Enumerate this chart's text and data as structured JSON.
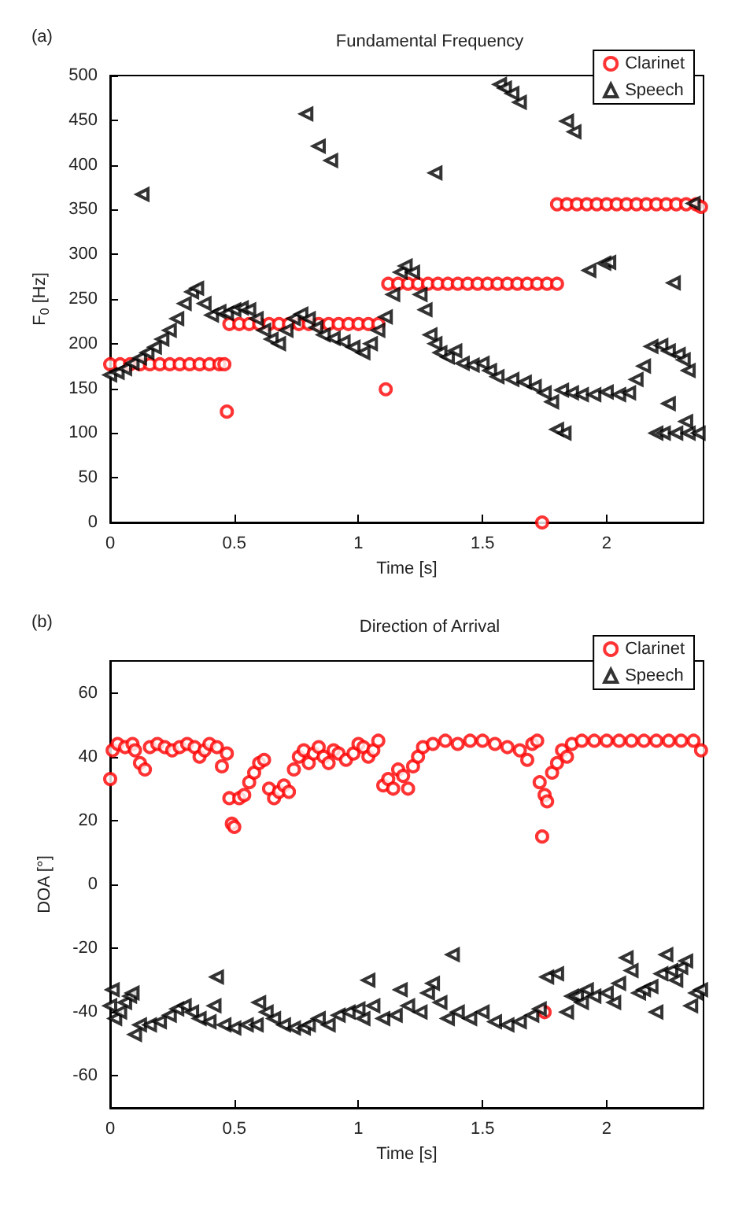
{
  "chart_data": [
    {
      "type": "scatter",
      "title": "Fundamental Frequency",
      "xlabel": "Time [s]",
      "ylabel": "F$_{0}$ [Hz]",
      "annotations": [
        "(a)"
      ],
      "xlim": [
        0,
        2.39
      ],
      "xticks": [
        0,
        0.5,
        1,
        1.5,
        2
      ],
      "ylim": [
        0,
        500
      ],
      "yticks": [
        0,
        50,
        100,
        150,
        200,
        250,
        300,
        350,
        400,
        450,
        500
      ],
      "grid": false,
      "legend": "top right",
      "series": [
        {
          "name": "Clarinet",
          "color": "#ff0000",
          "marker": "circle",
          "x": [
            0,
            0.04,
            0.08,
            0.12,
            0.16,
            0.2,
            0.24,
            0.28,
            0.32,
            0.36,
            0.4,
            0.44,
            0.46,
            0.47,
            0.48,
            0.52,
            0.56,
            0.6,
            0.64,
            0.68,
            0.72,
            0.76,
            0.8,
            0.84,
            0.88,
            0.92,
            0.96,
            1,
            1.04,
            1.08,
            1.11,
            1.12,
            1.16,
            1.2,
            1.24,
            1.28,
            1.32,
            1.36,
            1.4,
            1.44,
            1.48,
            1.52,
            1.56,
            1.6,
            1.64,
            1.68,
            1.72,
            1.74,
            1.76,
            1.8,
            1.8,
            1.84,
            1.88,
            1.92,
            1.96,
            2,
            2.04,
            2.08,
            2.12,
            2.16,
            2.2,
            2.24,
            2.28,
            2.32,
            2.36,
            2.38
          ],
          "values": [
            177,
            177,
            177,
            177,
            177,
            177,
            177,
            177,
            177,
            177,
            177,
            177,
            177,
            124,
            222,
            222,
            222,
            222,
            222,
            222,
            222,
            222,
            222,
            222,
            222,
            222,
            222,
            222,
            222,
            222,
            149,
            267,
            267,
            267,
            267,
            267,
            267,
            267,
            267,
            267,
            267,
            267,
            267,
            267,
            267,
            267,
            267,
            0,
            267,
            267,
            356,
            356,
            356,
            356,
            356,
            356,
            356,
            356,
            356,
            356,
            356,
            356,
            356,
            356,
            356,
            353
          ]
        },
        {
          "name": "Speech",
          "color": "#000000",
          "marker": "triangle",
          "x": [
            0,
            0.03,
            0.06,
            0.09,
            0.12,
            0.15,
            0.18,
            0.21,
            0.24,
            0.27,
            0.3,
            0.33,
            0.35,
            0.38,
            0.41,
            0.44,
            0.47,
            0.5,
            0.53,
            0.56,
            0.59,
            0.62,
            0.65,
            0.68,
            0.71,
            0.74,
            0.77,
            0.8,
            0.83,
            0.86,
            0.9,
            0.94,
            0.98,
            1.02,
            1.05,
            1.08,
            1.11,
            1.14,
            1.17,
            1.19,
            1.22,
            1.25,
            1.27,
            1.29,
            1.31,
            1.33,
            1.36,
            1.39,
            1.42,
            1.46,
            1.5,
            1.53,
            1.56,
            1.62,
            1.67,
            1.71,
            1.75,
            1.78,
            1.82,
            1.86,
            1.9,
            1.95,
            2,
            2.05,
            2.09,
            2.12,
            2.15,
            2.18,
            2.22,
            2.25,
            2.29,
            2.31,
            0.13,
            0.79,
            0.84,
            0.89,
            1.31,
            1.57,
            1.59,
            1.62,
            1.65,
            1.84,
            1.87,
            1.93,
            1.99,
            2.01,
            2.2,
            2.23,
            2.28,
            2.33,
            2.37,
            1.8,
            1.83,
            2.25,
            2.33,
            2.27,
            2.35,
            2.32
          ],
          "values": [
            165,
            168,
            172,
            178,
            184,
            190,
            196,
            205,
            215,
            228,
            245,
            258,
            262,
            245,
            232,
            236,
            234,
            238,
            240,
            238,
            228,
            215,
            205,
            200,
            215,
            228,
            233,
            228,
            218,
            210,
            206,
            202,
            196,
            190,
            200,
            215,
            230,
            255,
            280,
            287,
            280,
            255,
            238,
            210,
            200,
            190,
            185,
            192,
            178,
            176,
            178,
            170,
            163,
            160,
            157,
            152,
            145,
            135,
            148,
            145,
            143,
            143,
            146,
            143,
            145,
            160,
            175,
            197,
            198,
            192,
            188,
            182,
            367,
            457,
            421,
            405,
            391,
            490,
            486,
            480,
            470,
            449,
            437,
            282,
            290,
            291,
            100,
            100,
            100,
            100,
            100,
            104,
            100,
            133,
            170,
            268,
            357,
            113
          ]
        }
      ]
    },
    {
      "type": "scatter",
      "title": "Direction of Arrival",
      "xlabel": "Time [s]",
      "ylabel": "DOA [°]",
      "annotations": [
        "(b)"
      ],
      "xlim": [
        0,
        2.39
      ],
      "xticks": [
        0,
        0.5,
        1,
        1.5,
        2
      ],
      "ylim": [
        -70,
        70
      ],
      "yticks": [
        -60,
        -40,
        -20,
        0,
        20,
        40,
        60
      ],
      "grid": false,
      "legend": "top right",
      "series": [
        {
          "name": "Clarinet",
          "color": "#ff0000",
          "marker": "circle",
          "x": [
            0,
            0.01,
            0.03,
            0.06,
            0.09,
            0.1,
            0.12,
            0.14,
            0.16,
            0.19,
            0.22,
            0.25,
            0.28,
            0.31,
            0.34,
            0.36,
            0.38,
            0.4,
            0.43,
            0.45,
            0.47,
            0.48,
            0.49,
            0.5,
            0.52,
            0.54,
            0.56,
            0.58,
            0.6,
            0.62,
            0.64,
            0.66,
            0.68,
            0.7,
            0.72,
            0.74,
            0.76,
            0.78,
            0.8,
            0.82,
            0.84,
            0.86,
            0.88,
            0.9,
            0.92,
            0.95,
            0.98,
            1,
            1.02,
            1.04,
            1.06,
            1.08,
            1.1,
            1.12,
            1.14,
            1.16,
            1.18,
            1.2,
            1.22,
            1.24,
            1.26,
            1.3,
            1.35,
            1.4,
            1.45,
            1.5,
            1.55,
            1.6,
            1.65,
            1.68,
            1.7,
            1.72,
            1.73,
            1.74,
            1.75,
            1.76,
            1.78,
            1.8,
            1.82,
            1.84,
            1.86,
            1.9,
            1.95,
            2,
            2.05,
            2.1,
            2.15,
            2.2,
            2.25,
            2.3,
            2.35,
            2.38,
            1.75
          ],
          "values": [
            33,
            42,
            44,
            43,
            44,
            42,
            38,
            36,
            43,
            44,
            43,
            42,
            43,
            44,
            43,
            40,
            42,
            44,
            43,
            37,
            41,
            27,
            19,
            18,
            27,
            28,
            32,
            35,
            38,
            39,
            30,
            27,
            29,
            31,
            29,
            36,
            40,
            42,
            38,
            41,
            43,
            40,
            38,
            42,
            41,
            39,
            41,
            44,
            43,
            40,
            42,
            45,
            31,
            33,
            30,
            36,
            34,
            30,
            37,
            40,
            43,
            44,
            45,
            44,
            45,
            45,
            44,
            43,
            42,
            39,
            44,
            45,
            32,
            15,
            28,
            26,
            35,
            38,
            42,
            40,
            44,
            45,
            45,
            45,
            45,
            45,
            45,
            45,
            45,
            45,
            45,
            42,
            -40
          ]
        },
        {
          "name": "Speech",
          "color": "#000000",
          "marker": "triangle",
          "x": [
            0,
            0.01,
            0.02,
            0.04,
            0.06,
            0.08,
            0.09,
            0.1,
            0.12,
            0.16,
            0.2,
            0.24,
            0.27,
            0.3,
            0.33,
            0.36,
            0.4,
            0.42,
            0.43,
            0.46,
            0.5,
            0.55,
            0.59,
            0.6,
            0.63,
            0.66,
            0.7,
            0.74,
            0.78,
            0.8,
            0.84,
            0.88,
            0.92,
            0.96,
            1,
            1.02,
            1.04,
            1.06,
            1.1,
            1.15,
            1.17,
            1.2,
            1.25,
            1.28,
            1.3,
            1.33,
            1.36,
            1.38,
            1.4,
            1.45,
            1.5,
            1.55,
            1.6,
            1.65,
            1.7,
            1.73,
            1.76,
            1.8,
            1.84,
            1.86,
            1.88,
            1.9,
            1.92,
            1.95,
            2,
            2.03,
            2.05,
            2.08,
            2.1,
            2.13,
            2.15,
            2.18,
            2.2,
            2.22,
            2.24,
            2.26,
            2.28,
            2.3,
            2.32,
            2.34,
            2.36,
            2.38
          ],
          "values": [
            -38,
            -33,
            -42,
            -40,
            -37,
            -35,
            -34,
            -47,
            -44,
            -44,
            -43,
            -41,
            -39,
            -38,
            -40,
            -42,
            -43,
            -38,
            -29,
            -44,
            -45,
            -44,
            -44,
            -37,
            -40,
            -42,
            -44,
            -45,
            -45,
            -44,
            -42,
            -44,
            -41,
            -40,
            -39,
            -42,
            -30,
            -38,
            -42,
            -41,
            -33,
            -38,
            -40,
            -34,
            -31,
            -37,
            -42,
            -22,
            -40,
            -42,
            -40,
            -43,
            -44,
            -43,
            -41,
            -39,
            -29,
            -28,
            -40,
            -35,
            -35,
            -37,
            -33,
            -35,
            -34,
            -37,
            -31,
            -23,
            -27,
            -34,
            -33,
            -32,
            -40,
            -28,
            -22,
            -27,
            -30,
            -26,
            -24,
            -38,
            -34,
            -33
          ]
        }
      ]
    }
  ]
}
